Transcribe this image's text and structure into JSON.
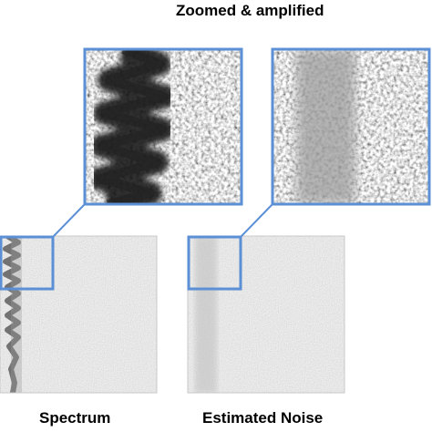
{
  "figure": {
    "zoom_title": "Zoomed & amplified",
    "panels": [
      {
        "id": "spectrum",
        "caption": "Spectrum"
      },
      {
        "id": "noise",
        "caption": "Estimated Noise"
      }
    ],
    "colors": {
      "frame_blue": "#5b8fd6",
      "panel_bg": "#e4e4e4",
      "dark_trace": "#1e1e1e",
      "noise_band": "#c8c8c8"
    }
  }
}
